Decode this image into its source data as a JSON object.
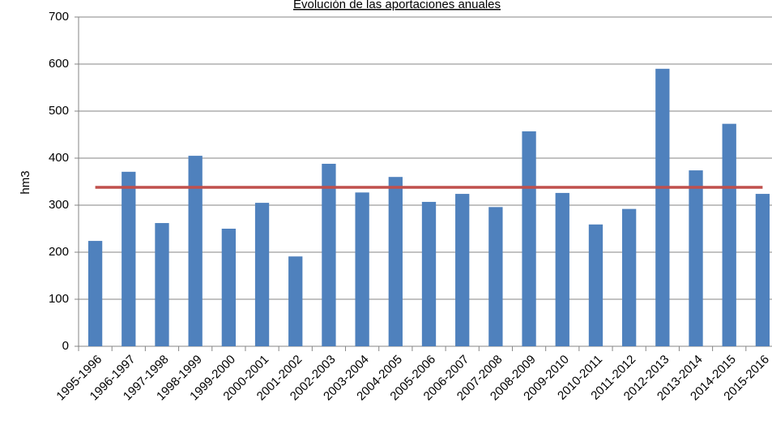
{
  "chart_data": {
    "type": "bar",
    "title": "Evolución de las aportaciones anuales",
    "y_label": "hm3",
    "categories": [
      "1995-1996",
      "1996-1997",
      "1997-1998",
      "1998-1999",
      "1999-2000",
      "2000-2001",
      "2001-2002",
      "2002-2003",
      "2003-2004",
      "2004-2005",
      "2005-2006",
      "2006-2007",
      "2007-2008",
      "2008-2009",
      "2009-2010",
      "2010-2011",
      "2011-2012",
      "2012-2013",
      "2013-2014",
      "2014-2015",
      "2015-2016"
    ],
    "values": [
      224,
      371,
      262,
      405,
      250,
      305,
      191,
      388,
      327,
      360,
      307,
      324,
      296,
      457,
      326,
      259,
      292,
      590,
      374,
      473,
      324
    ],
    "color": "#4f81bd",
    "mean_line": {
      "value": 338,
      "color": "#c0504d"
    },
    "ylim": [
      0,
      700
    ],
    "yticks": [
      0,
      100,
      200,
      300,
      400,
      500,
      600,
      700
    ],
    "grid": true
  }
}
